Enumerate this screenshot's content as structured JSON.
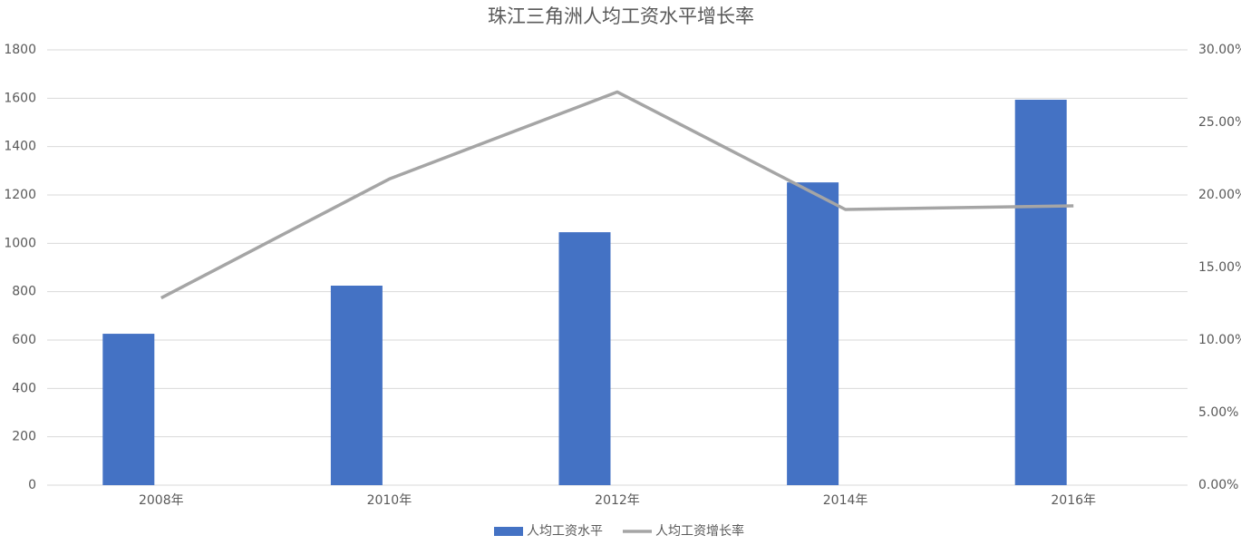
{
  "chart_data": {
    "type": "combo",
    "title": "珠江三角洲人均工资水平增长率",
    "categories": [
      "2008年",
      "2010年",
      "2012年",
      "2014年",
      "2016年"
    ],
    "series": [
      {
        "name": "人均工资水平",
        "type": "bar",
        "color": "#4472c4",
        "values": [
          626,
          825,
          1046,
          1252,
          1594
        ]
      },
      {
        "name": "人均工资增长率",
        "type": "line",
        "axis": "y2",
        "color": "#a5a5a5",
        "values": [
          12.9,
          21.1,
          27.1,
          19.0,
          19.25
        ]
      }
    ],
    "ylim": [
      0,
      1800
    ],
    "yticks": [
      0,
      200,
      400,
      600,
      800,
      1000,
      1200,
      1400,
      1600,
      1800
    ],
    "y2lim": [
      0,
      30
    ],
    "y2ticks": [
      {
        "value": 0,
        "label": "0.00%"
      },
      {
        "value": 5,
        "label": "5.00%"
      },
      {
        "value": 10,
        "label": "10.00%"
      },
      {
        "value": 15,
        "label": "15.00%"
      },
      {
        "value": 20,
        "label": "20.00%"
      },
      {
        "value": 25,
        "label": "25.00%"
      },
      {
        "value": 30,
        "label": "30.00%"
      }
    ],
    "grid": true,
    "legend": "bottom"
  }
}
